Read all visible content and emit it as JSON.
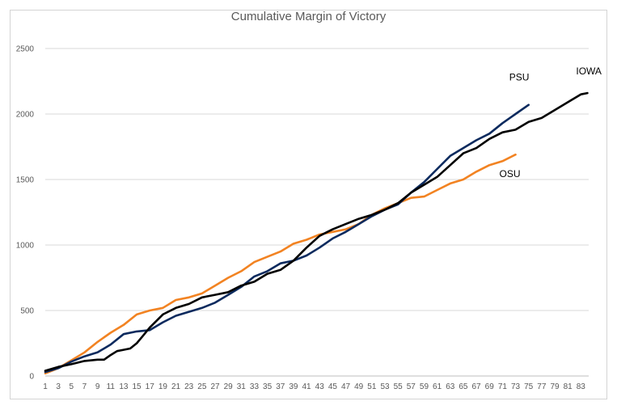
{
  "chart_data": {
    "type": "line",
    "title": "Cumulative Margin of Victory",
    "xlabel": "",
    "ylabel": "",
    "ylim": [
      0,
      2500
    ],
    "yticks": [
      0,
      500,
      1000,
      1500,
      2000,
      2500
    ],
    "xlim": [
      1,
      84
    ],
    "xticks": [
      1,
      3,
      5,
      7,
      9,
      11,
      13,
      15,
      17,
      19,
      21,
      23,
      25,
      27,
      29,
      31,
      33,
      35,
      37,
      39,
      41,
      43,
      45,
      47,
      49,
      51,
      53,
      55,
      57,
      59,
      61,
      63,
      65,
      67,
      69,
      71,
      73,
      75,
      77,
      79,
      81,
      83
    ],
    "grid": true,
    "legend": "none",
    "series": [
      {
        "name": "IOWA",
        "color": "#000000",
        "x": [
          1,
          3,
          5,
          7,
          9,
          10,
          11,
          12,
          13,
          14,
          15,
          16,
          17,
          19,
          21,
          23,
          25,
          27,
          29,
          31,
          33,
          35,
          37,
          39,
          41,
          43,
          45,
          47,
          49,
          51,
          53,
          55,
          57,
          59,
          61,
          63,
          65,
          67,
          69,
          71,
          73,
          75,
          77,
          79,
          81,
          83,
          84
        ],
        "values": [
          40,
          70,
          90,
          115,
          125,
          125,
          160,
          190,
          200,
          210,
          250,
          310,
          370,
          470,
          520,
          550,
          600,
          620,
          640,
          690,
          720,
          780,
          810,
          880,
          980,
          1070,
          1120,
          1160,
          1200,
          1230,
          1270,
          1320,
          1400,
          1460,
          1520,
          1610,
          1700,
          1740,
          1810,
          1860,
          1880,
          1940,
          1970,
          2030,
          2090,
          2150,
          2160
        ]
      },
      {
        "name": "PSU",
        "color": "#0b2a5e",
        "x": [
          1,
          3,
          5,
          7,
          9,
          11,
          13,
          15,
          17,
          19,
          21,
          23,
          25,
          27,
          29,
          31,
          33,
          35,
          37,
          39,
          41,
          43,
          45,
          47,
          49,
          51,
          53,
          55,
          57,
          59,
          61,
          63,
          65,
          67,
          69,
          71,
          73,
          75
        ],
        "values": [
          30,
          60,
          110,
          150,
          180,
          240,
          320,
          340,
          350,
          410,
          460,
          490,
          520,
          560,
          620,
          680,
          760,
          800,
          860,
          880,
          920,
          980,
          1050,
          1100,
          1160,
          1220,
          1270,
          1310,
          1400,
          1480,
          1580,
          1680,
          1740,
          1800,
          1850,
          1930,
          2000,
          2070
        ]
      },
      {
        "name": "OSU",
        "color": "#f28322",
        "x": [
          1,
          3,
          5,
          7,
          9,
          11,
          13,
          15,
          17,
          19,
          21,
          23,
          25,
          27,
          29,
          31,
          33,
          35,
          37,
          39,
          41,
          43,
          45,
          47,
          49,
          51,
          53,
          55,
          57,
          59,
          61,
          63,
          65,
          67,
          69,
          71,
          73
        ],
        "values": [
          20,
          60,
          120,
          180,
          260,
          330,
          390,
          470,
          500,
          520,
          580,
          600,
          630,
          690,
          750,
          800,
          870,
          910,
          950,
          1010,
          1040,
          1080,
          1100,
          1120,
          1160,
          1230,
          1280,
          1320,
          1360,
          1370,
          1420,
          1470,
          1500,
          1560,
          1610,
          1640,
          1690
        ]
      }
    ]
  }
}
